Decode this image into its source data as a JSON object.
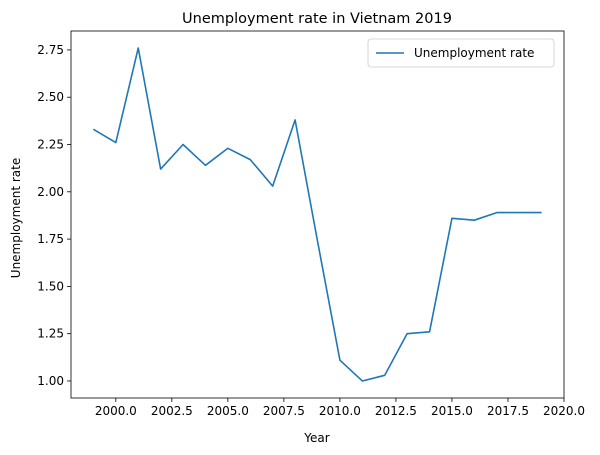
{
  "chart_data": {
    "type": "line",
    "title": "Unemployment rate in Vietnam 2019",
    "xlabel": "Year",
    "ylabel": "Unemployment rate",
    "xlim": [
      1998,
      2020
    ],
    "ylim": [
      0.91,
      2.85
    ],
    "xticks": [
      2000.0,
      2002.5,
      2005.0,
      2007.5,
      2010.0,
      2012.5,
      2015.0,
      2017.5,
      2020.0
    ],
    "xtick_labels": [
      "2000.0",
      "2002.5",
      "2005.0",
      "2007.5",
      "2010.0",
      "2012.5",
      "2015.0",
      "2017.5",
      "2020.0"
    ],
    "yticks": [
      1.0,
      1.25,
      1.5,
      1.75,
      2.0,
      2.25,
      2.5,
      2.75
    ],
    "ytick_labels": [
      "1.00",
      "1.25",
      "1.50",
      "1.75",
      "2.00",
      "2.25",
      "2.50",
      "2.75"
    ],
    "grid": false,
    "legend": "upper-right",
    "x": [
      1999,
      2000,
      2001,
      2002,
      2003,
      2004,
      2005,
      2006,
      2007,
      2008,
      2009,
      2010,
      2011,
      2012,
      2013,
      2014,
      2015,
      2016,
      2017,
      2018,
      2019
    ],
    "series": [
      {
        "name": "Unemployment rate",
        "color": "#1f77b4",
        "values": [
          2.33,
          2.26,
          2.76,
          2.12,
          2.25,
          2.14,
          2.23,
          2.17,
          2.03,
          2.38,
          1.74,
          1.11,
          1.0,
          1.03,
          1.25,
          1.26,
          1.86,
          1.85,
          1.89,
          1.89,
          1.89
        ]
      }
    ]
  }
}
